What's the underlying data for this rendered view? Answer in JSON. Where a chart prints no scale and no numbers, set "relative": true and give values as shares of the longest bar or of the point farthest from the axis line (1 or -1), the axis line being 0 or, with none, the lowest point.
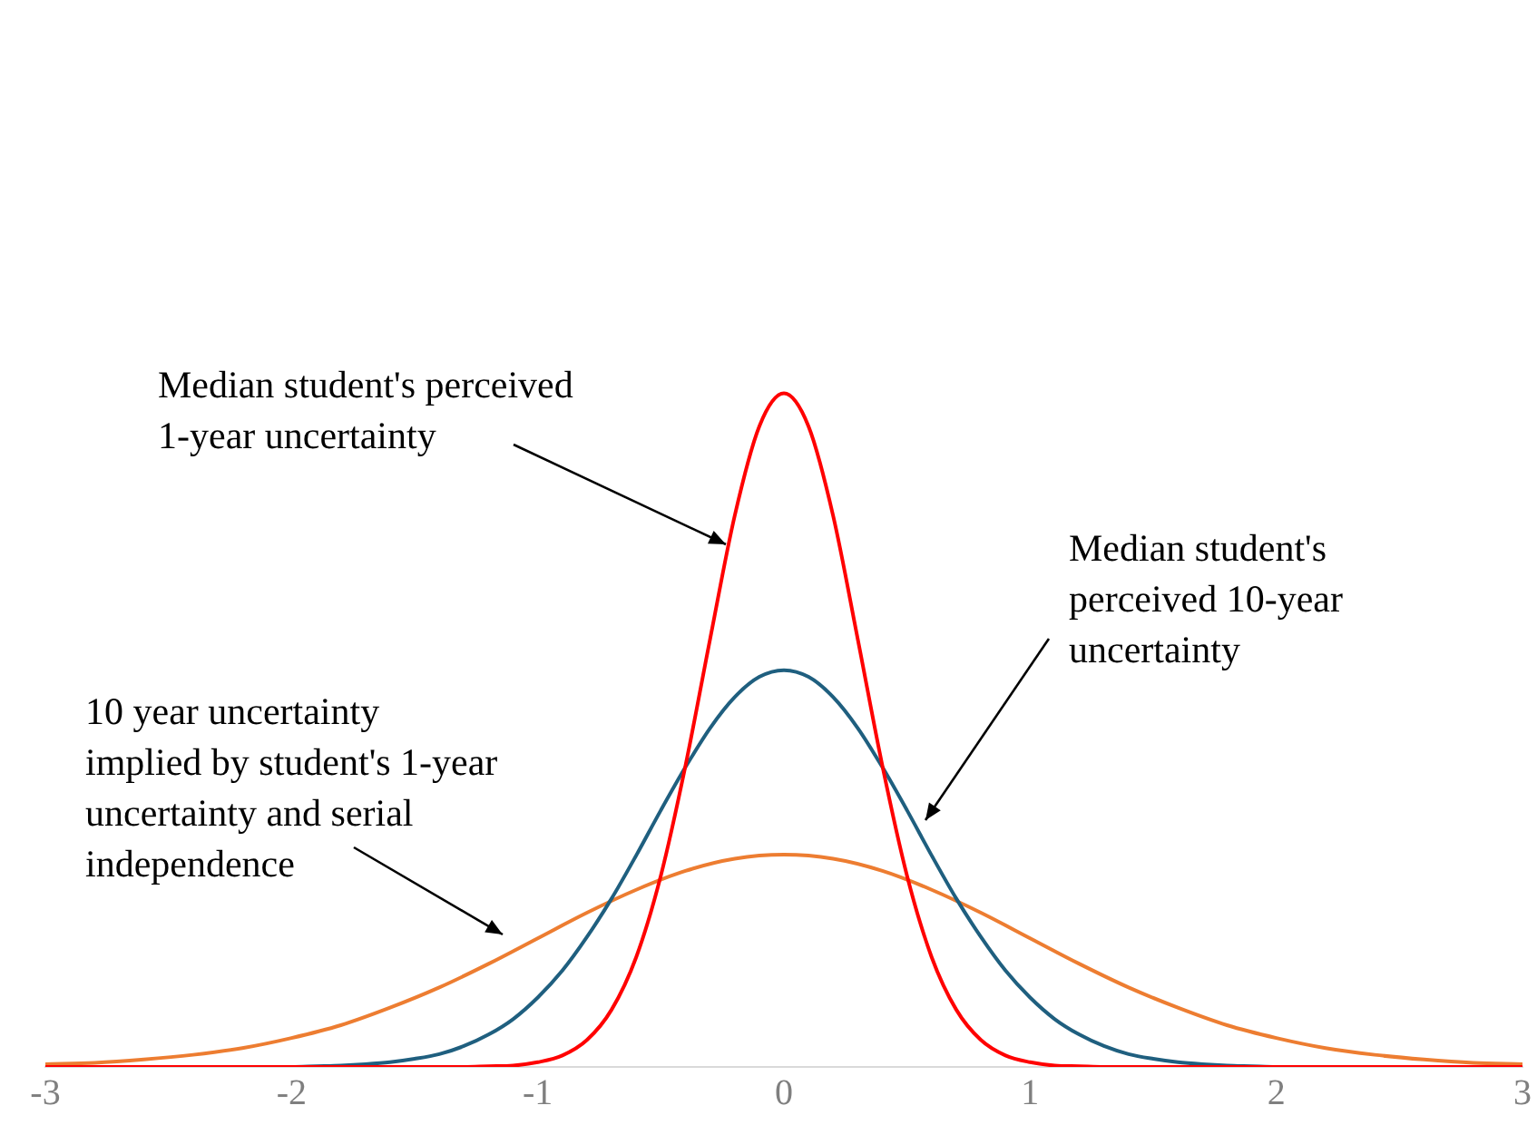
{
  "chart_data": {
    "type": "line",
    "relative": true,
    "xlim": [
      -3,
      3
    ],
    "xticks": [
      -3,
      -2,
      -1,
      0,
      1,
      2,
      3
    ],
    "grid": false,
    "legend": false,
    "annotations": [
      "Median student's perceived\n1-year uncertainty",
      "Median student's\nperceived 10-year\nuncertainty",
      "10 year uncertainty\nimplied by student's 1-year\nuncertainty and serial\nindependence"
    ],
    "series": [
      {
        "color": "#ff0000",
        "x": [
          -3,
          -1.4,
          -1.3,
          -1.2,
          -1.1,
          -1,
          -0.9,
          -0.8,
          -0.7,
          -0.6,
          -0.5,
          -0.4,
          -0.3,
          -0.2,
          -0.1,
          0,
          0.1,
          0.2,
          0.3,
          0.4,
          0.5,
          0.6,
          0.7,
          0.8,
          0.9,
          1,
          1.1,
          1.2,
          1.3,
          1.4,
          3
        ],
        "values": [
          0,
          0,
          0,
          0.001,
          0.002,
          0.007,
          0.017,
          0.04,
          0.085,
          0.163,
          0.284,
          0.447,
          0.635,
          0.818,
          0.951,
          1,
          0.951,
          0.818,
          0.635,
          0.447,
          0.284,
          0.163,
          0.085,
          0.04,
          0.017,
          0.007,
          0.002,
          0.001,
          0,
          0,
          0
        ]
      },
      {
        "color": "#1f5f7f",
        "x": [
          -3,
          -2,
          -1.9,
          -1.8,
          -1.7,
          -1.6,
          -1.5,
          -1.4,
          -1.3,
          -1.2,
          -1.1,
          -1,
          -0.9,
          -0.8,
          -0.7,
          -0.6,
          -0.5,
          -0.4,
          -0.3,
          -0.2,
          -0.1,
          0,
          0.1,
          0.2,
          0.3,
          0.4,
          0.5,
          0.6,
          0.7,
          0.8,
          0.9,
          1,
          1.1,
          1.2,
          1.3,
          1.4,
          1.5,
          1.6,
          1.7,
          1.8,
          1.9,
          2,
          3
        ],
        "values": [
          0,
          0,
          0.001,
          0.002,
          0.004,
          0.007,
          0.012,
          0.019,
          0.031,
          0.048,
          0.071,
          0.103,
          0.143,
          0.193,
          0.25,
          0.314,
          0.381,
          0.445,
          0.503,
          0.549,
          0.579,
          0.589,
          0.579,
          0.549,
          0.503,
          0.445,
          0.381,
          0.314,
          0.25,
          0.193,
          0.143,
          0.103,
          0.071,
          0.048,
          0.031,
          0.019,
          0.012,
          0.007,
          0.004,
          0.002,
          0.001,
          0,
          0
        ]
      },
      {
        "color": "#ed7d31",
        "x": [
          -3,
          -2.8,
          -2.6,
          -2.4,
          -2.2,
          -2,
          -1.8,
          -1.6,
          -1.4,
          -1.2,
          -1,
          -0.8,
          -0.6,
          -0.4,
          -0.2,
          0,
          0.2,
          0.4,
          0.6,
          0.8,
          1,
          1.2,
          1.4,
          1.6,
          1.8,
          2,
          2.2,
          2.4,
          2.6,
          2.8,
          3
        ],
        "values": [
          0.004,
          0.006,
          0.011,
          0.018,
          0.028,
          0.043,
          0.062,
          0.088,
          0.118,
          0.153,
          0.191,
          0.229,
          0.263,
          0.291,
          0.309,
          0.315,
          0.309,
          0.291,
          0.263,
          0.229,
          0.191,
          0.153,
          0.118,
          0.088,
          0.062,
          0.043,
          0.028,
          0.018,
          0.011,
          0.006,
          0.004
        ]
      }
    ]
  }
}
